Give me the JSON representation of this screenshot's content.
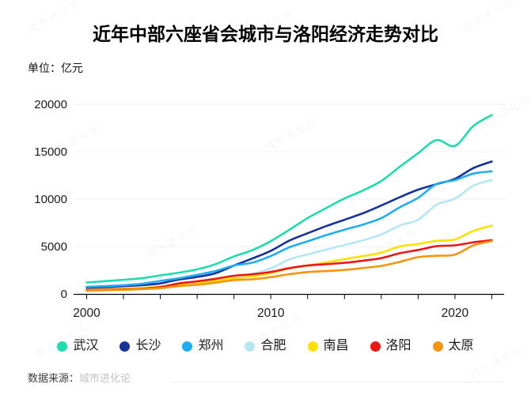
{
  "chart_data": {
    "type": "line",
    "title": "近年中部六座省会城市与洛阳经济走势对比",
    "unit_label": "单位：亿元",
    "x": [
      2000,
      2001,
      2002,
      2003,
      2004,
      2005,
      2006,
      2007,
      2008,
      2009,
      2010,
      2011,
      2012,
      2013,
      2014,
      2015,
      2016,
      2017,
      2018,
      2019,
      2020,
      2021,
      2022
    ],
    "x_tick_interval": 2,
    "x_labeled_ticks": [
      "2000",
      "2010",
      "2020"
    ],
    "ylim": [
      0,
      20000
    ],
    "yticks": [
      0,
      5000,
      10000,
      15000,
      20000
    ],
    "grid": "horizontal",
    "legend_position": "bottom",
    "series": [
      {
        "name": "武汉",
        "color": "#1edcab",
        "values": [
          1207,
          1348,
          1493,
          1662,
          1956,
          2238,
          2591,
          3142,
          3960,
          4621,
          5566,
          6762,
          8004,
          9051,
          10069,
          10906,
          11913,
          13410,
          14847,
          16223,
          15616,
          17717,
          18866
        ]
      },
      {
        "name": "长沙",
        "color": "#17339b",
        "values": [
          656,
          728,
          813,
          929,
          1109,
          1520,
          1791,
          2190,
          3001,
          3745,
          4547,
          5619,
          6400,
          7153,
          7825,
          8510,
          9324,
          10200,
          11003,
          11574,
          12143,
          13271,
          13966
        ]
      },
      {
        "name": "郑州",
        "color": "#1fadf2",
        "values": [
          738,
          828,
          928,
          1074,
          1375,
          1650,
          2014,
          2421,
          3004,
          3300,
          4000,
          4913,
          5547,
          6202,
          6777,
          7315,
          7994,
          9130,
          10143,
          11590,
          12003,
          12691,
          12935
        ]
      },
      {
        "name": "合肥",
        "color": "#b5e6f4",
        "values": [
          325,
          364,
          413,
          478,
          589,
          854,
          1074,
          1334,
          1665,
          2102,
          2702,
          3637,
          4164,
          4673,
          5158,
          5660,
          6274,
          7213,
          7823,
          9409,
          10046,
          11413,
          12013
        ]
      },
      {
        "name": "南昌",
        "color": "#ffe100",
        "values": [
          428,
          485,
          552,
          641,
          770,
          1008,
          1185,
          1390,
          1660,
          1838,
          2200,
          2689,
          3001,
          3336,
          3668,
          4000,
          4355,
          5003,
          5275,
          5596,
          5746,
          6651,
          7204
        ]
      },
      {
        "name": "洛阳",
        "color": "#ef1616",
        "values": [
          410,
          443,
          482,
          548,
          730,
          1112,
          1332,
          1596,
          1919,
          2075,
          2321,
          2723,
          3001,
          3141,
          3284,
          3509,
          3783,
          4290,
          4640,
          5035,
          5128,
          5447,
          5675
        ]
      },
      {
        "name": "太原",
        "color": "#f5950f",
        "values": [
          357,
          404,
          433,
          515,
          617,
          830,
          977,
          1191,
          1468,
          1545,
          1778,
          2080,
          2311,
          2412,
          2531,
          2735,
          2955,
          3382,
          3884,
          4028,
          4153,
          5121,
          5571
        ]
      }
    ],
    "source_label": "数据来源：",
    "source_value": "城市进化论",
    "watermark_text": "城市进化论"
  }
}
